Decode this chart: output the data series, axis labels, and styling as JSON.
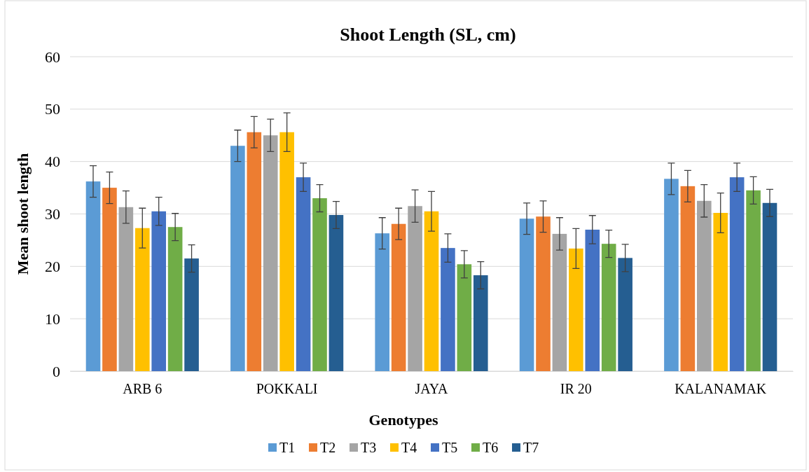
{
  "chart_data": {
    "type": "bar",
    "title": "Shoot Length (SL, cm)",
    "xlabel": "Genotypes",
    "ylabel": "Mean shoot length",
    "categories": [
      "ARB 6",
      "POKKALI",
      "JAYA",
      "IR 20",
      "KALANAMAK"
    ],
    "series": [
      {
        "name": "T1",
        "color": "#5b9bd5",
        "values": [
          36.2,
          43.0,
          26.3,
          29.1,
          36.7
        ],
        "errors": [
          3,
          3,
          3,
          3,
          3
        ]
      },
      {
        "name": "T2",
        "color": "#ed7d31",
        "values": [
          35.0,
          45.6,
          28.1,
          29.5,
          35.3
        ],
        "errors": [
          3,
          3,
          3,
          3,
          3
        ]
      },
      {
        "name": "T3",
        "color": "#a5a5a5",
        "values": [
          31.3,
          45.0,
          31.5,
          26.2,
          32.5
        ],
        "errors": [
          3.1,
          3.1,
          3.1,
          3.1,
          3.1
        ]
      },
      {
        "name": "T4",
        "color": "#ffc000",
        "values": [
          27.3,
          45.6,
          30.5,
          23.4,
          30.2
        ],
        "errors": [
          3.8,
          3.7,
          3.8,
          3.8,
          3.8
        ]
      },
      {
        "name": "T5",
        "color": "#4472c4",
        "values": [
          30.5,
          37.0,
          23.5,
          27.0,
          37.0
        ],
        "errors": [
          2.7,
          2.7,
          2.7,
          2.7,
          2.7
        ]
      },
      {
        "name": "T6",
        "color": "#70ad47",
        "values": [
          27.5,
          33.0,
          20.4,
          24.3,
          34.5
        ],
        "errors": [
          2.6,
          2.6,
          2.6,
          2.6,
          2.6
        ]
      },
      {
        "name": "T7",
        "color": "#255e91",
        "values": [
          21.5,
          29.8,
          18.3,
          21.6,
          32.1
        ],
        "errors": [
          2.6,
          2.6,
          2.6,
          2.6,
          2.6
        ]
      }
    ],
    "ylim": [
      0,
      60
    ],
    "yticks": [
      0,
      10,
      20,
      30,
      40,
      50,
      60
    ],
    "grid": "y",
    "legend": "bottom"
  }
}
